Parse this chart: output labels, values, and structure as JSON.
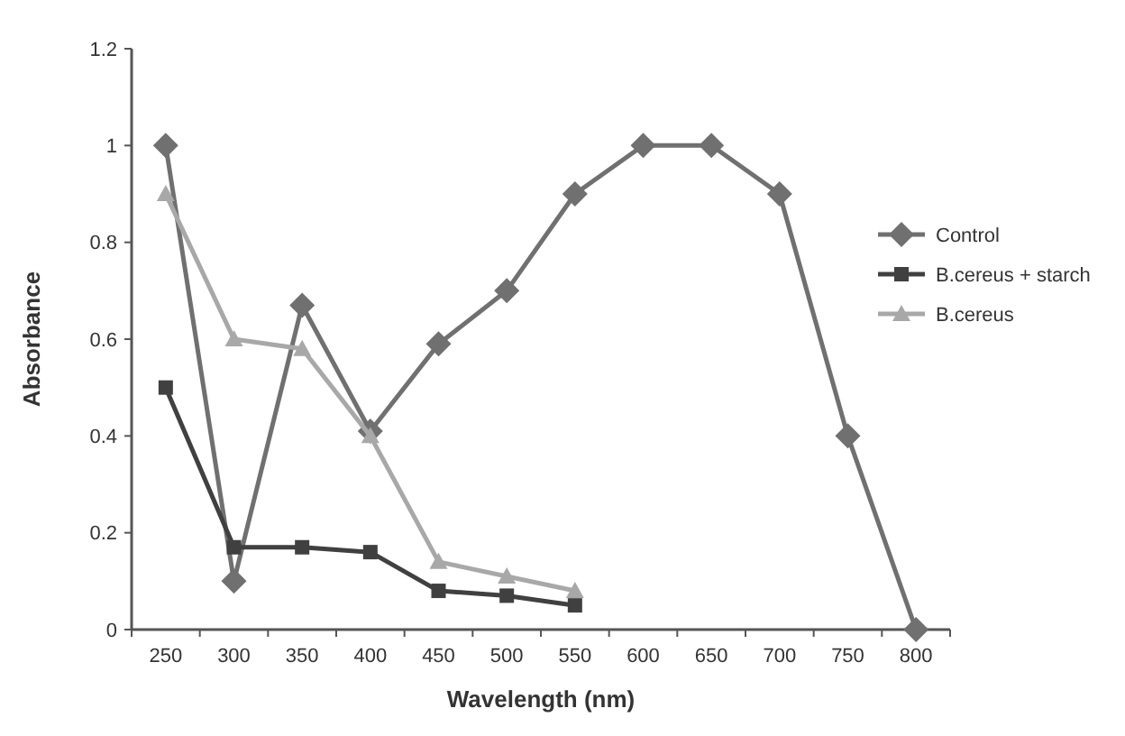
{
  "chart_data": {
    "type": "line",
    "xlabel": "Wavelength (nm)",
    "ylabel": "Absorbance",
    "categories": [
      "250",
      "300",
      "350",
      "400",
      "450",
      "500",
      "550",
      "600",
      "650",
      "700",
      "750",
      "800"
    ],
    "ylim": [
      0,
      1.2
    ],
    "yticks": [
      0,
      {
        "value": 0.2,
        "label": "0.2"
      },
      {
        "value": 0.4,
        "label": "0.4"
      },
      {
        "value": 0.6,
        "label": "0.6"
      },
      {
        "value": 0.8,
        "label": "0.8"
      },
      1,
      {
        "value": 1.2,
        "label": "1.2"
      }
    ],
    "grid": false,
    "legend": "right",
    "series": [
      {
        "name": "Control",
        "color": "#707070",
        "marker": "diamond",
        "values": [
          1.0,
          0.1,
          0.67,
          0.41,
          0.59,
          0.7,
          0.9,
          1.0,
          1.0,
          0.9,
          0.4,
          0
        ]
      },
      {
        "name": "B.cereus + starch",
        "color": "#404040",
        "marker": "square",
        "values": [
          0.5,
          0.17,
          0.17,
          0.16,
          0.08,
          0.07,
          0.05,
          null,
          null,
          null,
          null,
          null
        ]
      },
      {
        "name": "B.cereus",
        "color": "#a8a8a8",
        "marker": "triangle",
        "values": [
          0.9,
          0.6,
          0.58,
          0.4,
          0.14,
          0.11,
          0.08,
          null,
          null,
          null,
          null,
          null
        ]
      }
    ]
  }
}
